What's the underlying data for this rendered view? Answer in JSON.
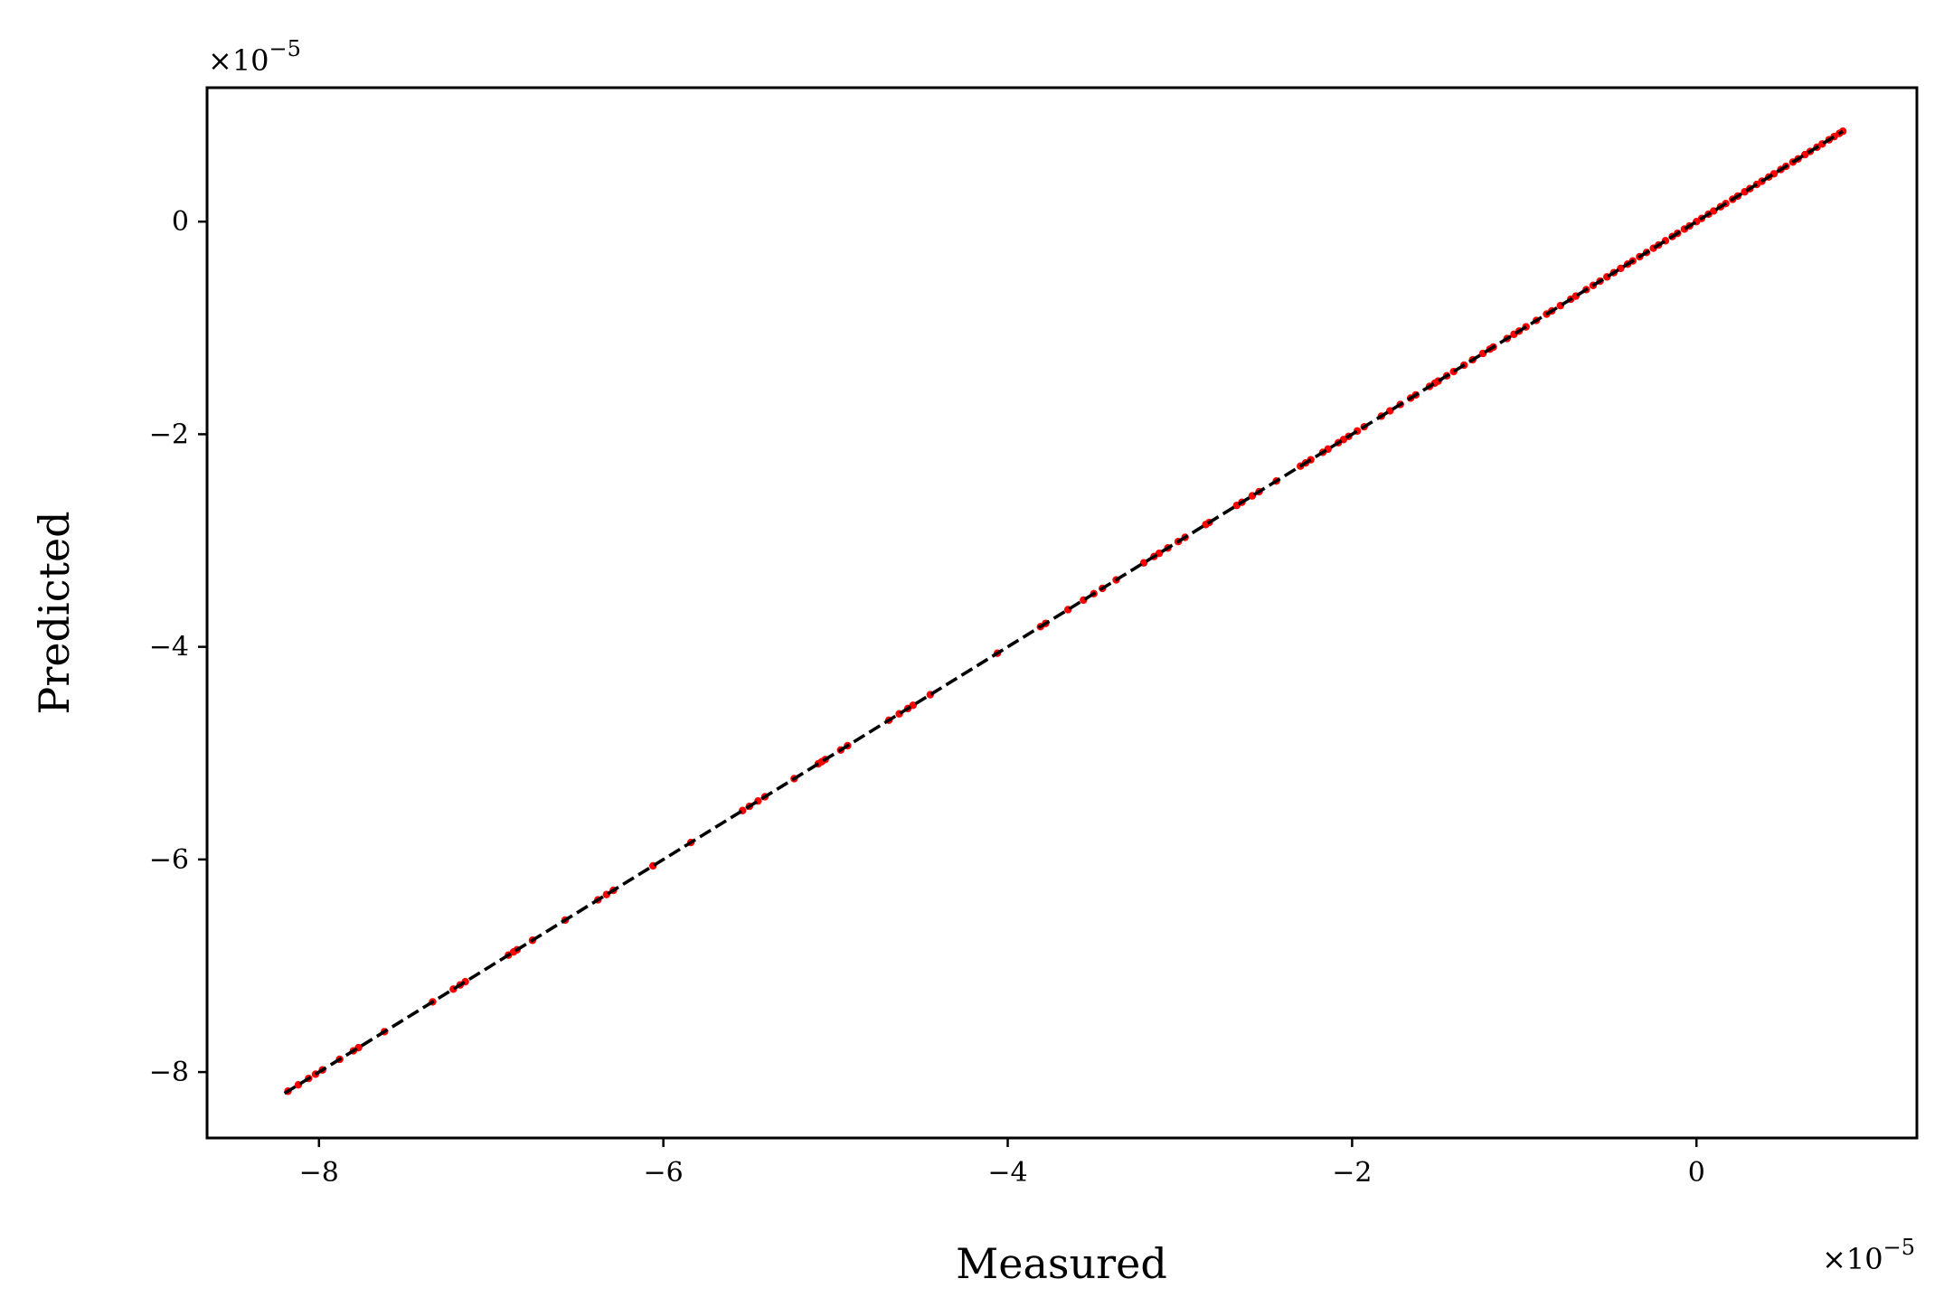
{
  "chart_data": {
    "type": "scatter",
    "title": "",
    "xlabel": "Measured",
    "ylabel": "Predicted",
    "x_offset_text": {
      "base": "×10",
      "exponent": "−5"
    },
    "y_offset_text": {
      "base": "×10",
      "exponent": "−5"
    },
    "scale_note": "values shown in units of 1e-5",
    "xlim": [
      -8.65,
      1.28
    ],
    "ylim": [
      -8.62,
      1.26
    ],
    "x_ticks": [
      {
        "value": -8,
        "label": "−8"
      },
      {
        "value": -6,
        "label": "−6"
      },
      {
        "value": -4,
        "label": "−4"
      },
      {
        "value": -2,
        "label": "−2"
      },
      {
        "value": 0,
        "label": "0"
      }
    ],
    "y_ticks": [
      {
        "value": -8,
        "label": "−8"
      },
      {
        "value": -6,
        "label": "−6"
      },
      {
        "value": -4,
        "label": "−4"
      },
      {
        "value": -2,
        "label": "−2"
      },
      {
        "value": 0,
        "label": "0"
      }
    ],
    "grid": false,
    "reference_line": {
      "from": [
        -8.2,
        -8.2
      ],
      "to": [
        0.85,
        0.85
      ],
      "style": "dashed",
      "color": "#000000"
    },
    "series": [
      {
        "color": "#ff0000",
        "points": [
          [
            -8.18,
            -8.18
          ],
          [
            -8.12,
            -8.12
          ],
          [
            -8.06,
            -8.06
          ],
          [
            -8.02,
            -8.02
          ],
          [
            -7.98,
            -7.98
          ],
          [
            -7.88,
            -7.88
          ],
          [
            -7.8,
            -7.8
          ],
          [
            -7.77,
            -7.77
          ],
          [
            -7.62,
            -7.62
          ],
          [
            -7.34,
            -7.34
          ],
          [
            -7.22,
            -7.22
          ],
          [
            -7.18,
            -7.18
          ],
          [
            -7.15,
            -7.15
          ],
          [
            -6.9,
            -6.9
          ],
          [
            -6.87,
            -6.87
          ],
          [
            -6.85,
            -6.85
          ],
          [
            -6.76,
            -6.76
          ],
          [
            -6.57,
            -6.57
          ],
          [
            -6.38,
            -6.38
          ],
          [
            -6.33,
            -6.33
          ],
          [
            -6.29,
            -6.29
          ],
          [
            -6.06,
            -6.06
          ],
          [
            -5.84,
            -5.84
          ],
          [
            -5.54,
            -5.54
          ],
          [
            -5.5,
            -5.5
          ],
          [
            -5.45,
            -5.45
          ],
          [
            -5.41,
            -5.41
          ],
          [
            -5.24,
            -5.24
          ],
          [
            -5.1,
            -5.1
          ],
          [
            -5.08,
            -5.08
          ],
          [
            -5.06,
            -5.06
          ],
          [
            -4.97,
            -4.97
          ],
          [
            -4.93,
            -4.93
          ],
          [
            -4.69,
            -4.69
          ],
          [
            -4.63,
            -4.63
          ],
          [
            -4.58,
            -4.58
          ],
          [
            -4.55,
            -4.55
          ],
          [
            -4.45,
            -4.45
          ],
          [
            -4.06,
            -4.06
          ],
          [
            -3.81,
            -3.81
          ],
          [
            -3.78,
            -3.78
          ],
          [
            -3.65,
            -3.65
          ],
          [
            -3.56,
            -3.56
          ],
          [
            -3.5,
            -3.5
          ],
          [
            -3.45,
            -3.45
          ],
          [
            -3.37,
            -3.37
          ],
          [
            -3.21,
            -3.21
          ],
          [
            -3.15,
            -3.15
          ],
          [
            -3.12,
            -3.12
          ],
          [
            -3.07,
            -3.07
          ],
          [
            -3.01,
            -3.01
          ],
          [
            -2.97,
            -2.97
          ],
          [
            -2.85,
            -2.85
          ],
          [
            -2.83,
            -2.83
          ],
          [
            -2.67,
            -2.67
          ],
          [
            -2.64,
            -2.64
          ],
          [
            -2.58,
            -2.58
          ],
          [
            -2.54,
            -2.54
          ],
          [
            -2.44,
            -2.44
          ],
          [
            -2.3,
            -2.3
          ],
          [
            -2.27,
            -2.27
          ],
          [
            -2.24,
            -2.24
          ],
          [
            -2.17,
            -2.17
          ],
          [
            -2.14,
            -2.14
          ],
          [
            -2.08,
            -2.08
          ],
          [
            -2.05,
            -2.05
          ],
          [
            -2.02,
            -2.02
          ],
          [
            -1.97,
            -1.97
          ],
          [
            -1.93,
            -1.93
          ],
          [
            -1.83,
            -1.83
          ],
          [
            -1.78,
            -1.78
          ],
          [
            -1.72,
            -1.72
          ],
          [
            -1.66,
            -1.66
          ],
          [
            -1.63,
            -1.63
          ],
          [
            -1.55,
            -1.55
          ],
          [
            -1.52,
            -1.52
          ],
          [
            -1.5,
            -1.5
          ],
          [
            -1.45,
            -1.45
          ],
          [
            -1.41,
            -1.41
          ],
          [
            -1.35,
            -1.35
          ],
          [
            -1.3,
            -1.3
          ],
          [
            -1.24,
            -1.24
          ],
          [
            -1.2,
            -1.2
          ],
          [
            -1.18,
            -1.18
          ],
          [
            -1.1,
            -1.1
          ],
          [
            -1.06,
            -1.06
          ],
          [
            -1.03,
            -1.03
          ],
          [
            -0.99,
            -0.99
          ],
          [
            -0.93,
            -0.93
          ],
          [
            -0.87,
            -0.87
          ],
          [
            -0.84,
            -0.84
          ],
          [
            -0.79,
            -0.79
          ],
          [
            -0.73,
            -0.73
          ],
          [
            -0.7,
            -0.7
          ],
          [
            -0.64,
            -0.64
          ],
          [
            -0.6,
            -0.6
          ],
          [
            -0.56,
            -0.56
          ],
          [
            -0.52,
            -0.52
          ],
          [
            -0.48,
            -0.48
          ],
          [
            -0.44,
            -0.44
          ],
          [
            -0.4,
            -0.4
          ],
          [
            -0.37,
            -0.37
          ],
          [
            -0.33,
            -0.33
          ],
          [
            -0.29,
            -0.29
          ],
          [
            -0.25,
            -0.25
          ],
          [
            -0.22,
            -0.22
          ],
          [
            -0.18,
            -0.18
          ],
          [
            -0.14,
            -0.14
          ],
          [
            -0.11,
            -0.11
          ],
          [
            -0.07,
            -0.07
          ],
          [
            -0.04,
            -0.04
          ],
          [
            0.0,
            0.0
          ],
          [
            0.03,
            0.03
          ],
          [
            0.07,
            0.07
          ],
          [
            0.1,
            0.1
          ],
          [
            0.14,
            0.14
          ],
          [
            0.17,
            0.17
          ],
          [
            0.21,
            0.21
          ],
          [
            0.24,
            0.24
          ],
          [
            0.28,
            0.28
          ],
          [
            0.31,
            0.31
          ],
          [
            0.35,
            0.35
          ],
          [
            0.38,
            0.38
          ],
          [
            0.42,
            0.42
          ],
          [
            0.45,
            0.45
          ],
          [
            0.49,
            0.49
          ],
          [
            0.52,
            0.52
          ],
          [
            0.56,
            0.56
          ],
          [
            0.59,
            0.59
          ],
          [
            0.63,
            0.63
          ],
          [
            0.66,
            0.66
          ],
          [
            0.7,
            0.7
          ],
          [
            0.73,
            0.73
          ],
          [
            0.77,
            0.77
          ],
          [
            0.8,
            0.8
          ],
          [
            0.83,
            0.83
          ],
          [
            0.85,
            0.85
          ]
        ]
      }
    ]
  }
}
